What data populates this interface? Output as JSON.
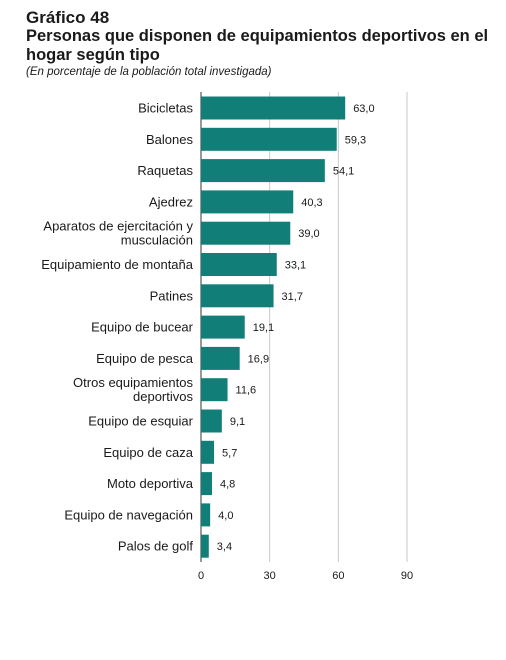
{
  "header": {
    "number": "Gráfico 48",
    "title": "Personas que disponen de equipamientos deportivos en el hogar según tipo",
    "subtitle": "(En porcentaje de la población total investigada)"
  },
  "colors": {
    "bar": "#117f78",
    "grid": "#c8c8c8",
    "axis": "#333333"
  },
  "chart_data": {
    "type": "bar",
    "orientation": "horizontal",
    "title": "Personas que disponen de equipamientos deportivos en el hogar según tipo",
    "subtitle": "(En porcentaje de la población total investigada)",
    "categories": [
      [
        "Bicicletas"
      ],
      [
        "Balones"
      ],
      [
        "Raquetas"
      ],
      [
        "Ajedrez"
      ],
      [
        "Aparatos de ejercitación y",
        "musculación"
      ],
      [
        "Equipamiento de montaña"
      ],
      [
        "Patines"
      ],
      [
        "Equipo de bucear"
      ],
      [
        "Equipo de pesca"
      ],
      [
        "Otros equipamientos",
        "deportivos"
      ],
      [
        "Equipo de esquiar"
      ],
      [
        "Equipo de caza"
      ],
      [
        "Moto deportiva"
      ],
      [
        "Equipo de navegación"
      ],
      [
        "Palos de golf"
      ]
    ],
    "values": [
      63.0,
      59.3,
      54.1,
      40.3,
      39.0,
      33.1,
      31.7,
      19.1,
      16.9,
      11.6,
      9.1,
      5.7,
      4.8,
      4.0,
      3.4
    ],
    "value_labels": [
      "63,0",
      "59,3",
      "54,1",
      "40,3",
      "39,0",
      "33,1",
      "31,7",
      "19,1",
      "16,9",
      "11,6",
      "9,1",
      "5,7",
      "4,8",
      "4,0",
      "3,4"
    ],
    "xlim": [
      0,
      90
    ],
    "xticks": [
      0,
      30,
      60,
      90
    ],
    "xtick_labels": [
      "0",
      "30",
      "60",
      "90"
    ],
    "grid": true
  }
}
